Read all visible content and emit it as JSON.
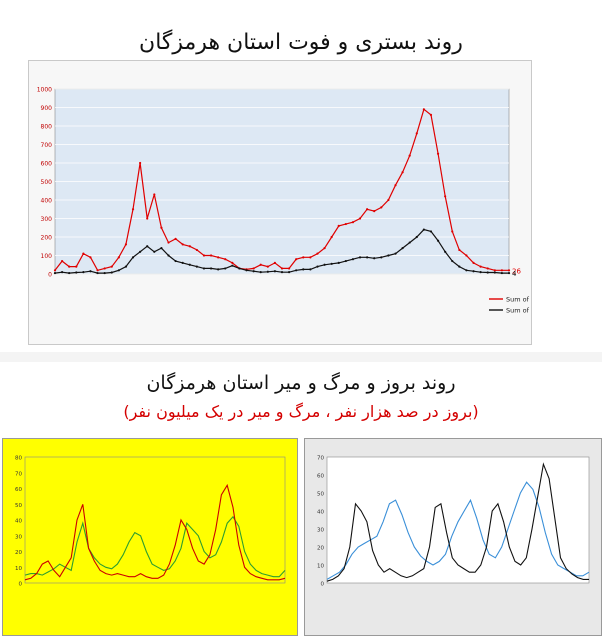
{
  "top": {
    "title": "روند بستری و فوت استان هرمزگان",
    "chart_data": {
      "type": "line",
      "y_left_ticks": [
        "0",
        "100",
        "200",
        "300",
        "400",
        "500",
        "600",
        "700",
        "800",
        "900",
        "1000"
      ],
      "ylim": [
        0,
        1000
      ],
      "series": [
        {
          "name": "Sum of بستری",
          "color": "#e00000",
          "values": [
            20,
            70,
            40,
            40,
            110,
            90,
            20,
            30,
            40,
            90,
            160,
            350,
            600,
            300,
            430,
            250,
            170,
            190,
            160,
            150,
            130,
            100,
            100,
            90,
            80,
            60,
            30,
            25,
            30,
            50,
            40,
            60,
            30,
            30,
            80,
            90,
            90,
            110,
            140,
            200,
            260,
            270,
            280,
            300,
            350,
            340,
            360,
            400,
            480,
            550,
            640,
            760,
            890,
            860,
            650,
            420,
            230,
            130,
            100,
            60,
            40,
            30,
            20,
            20,
            20
          ],
          "end_label": "26"
        },
        {
          "name": "Sum of فوت",
          "color": "#111111",
          "values": [
            5,
            10,
            5,
            8,
            10,
            15,
            5,
            5,
            8,
            20,
            40,
            90,
            120,
            150,
            120,
            140,
            100,
            70,
            60,
            50,
            40,
            30,
            30,
            25,
            30,
            45,
            30,
            20,
            15,
            10,
            12,
            15,
            10,
            10,
            20,
            25,
            25,
            40,
            50,
            55,
            60,
            70,
            80,
            90,
            90,
            85,
            90,
            100,
            110,
            140,
            170,
            200,
            240,
            230,
            180,
            120,
            70,
            40,
            20,
            15,
            10,
            8,
            8,
            5,
            5
          ],
          "end_label": "4"
        }
      ]
    }
  },
  "bottom": {
    "title": "روند بروز و مرگ و میر استان هرمزگان",
    "subtitle": "(بروز در صد هزار نفر ، مرگ و میر در یک میلیون نفر)",
    "left_chart": {
      "chart_data": {
        "type": "line",
        "y_ticks": [
          "0",
          "10",
          "20",
          "30",
          "40",
          "50",
          "60",
          "70",
          "80"
        ],
        "ylim": [
          0,
          80
        ],
        "series": [
          {
            "color": "#2e9e2e",
            "values": [
              5,
              6,
              6,
              5,
              7,
              9,
              12,
              10,
              8,
              26,
              38,
              22,
              16,
              12,
              10,
              9,
              12,
              18,
              26,
              32,
              30,
              20,
              12,
              10,
              8,
              9,
              14,
              22,
              38,
              34,
              30,
              20,
              16,
              18,
              26,
              38,
              42,
              36,
              20,
              12,
              8,
              6,
              5,
              4,
              4,
              8
            ]
          },
          {
            "color": "#cc0000",
            "values": [
              2,
              3,
              6,
              12,
              14,
              8,
              4,
              10,
              16,
              40,
              50,
              22,
              14,
              8,
              6,
              5,
              6,
              5,
              4,
              4,
              6,
              4,
              3,
              3,
              5,
              12,
              24,
              40,
              34,
              22,
              14,
              12,
              18,
              34,
              56,
              62,
              48,
              24,
              10,
              6,
              4,
              3,
              2,
              2,
              2,
              3
            ]
          }
        ]
      }
    },
    "right_chart": {
      "chart_data": {
        "type": "line",
        "y_ticks": [
          "0",
          "10",
          "20",
          "30",
          "40",
          "50",
          "60",
          "70"
        ],
        "ylim": [
          0,
          70
        ],
        "series": [
          {
            "color": "#3a8fd8",
            "values": [
              2,
              4,
              6,
              10,
              16,
              20,
              22,
              24,
              26,
              34,
              44,
              46,
              38,
              28,
              20,
              15,
              12,
              10,
              12,
              16,
              26,
              34,
              40,
              46,
              36,
              24,
              16,
              14,
              20,
              30,
              40,
              50,
              56,
              52,
              42,
              28,
              16,
              10,
              8,
              6,
              4,
              4,
              6
            ]
          },
          {
            "color": "#111111",
            "values": [
              1,
              2,
              4,
              8,
              20,
              44,
              40,
              34,
              18,
              10,
              6,
              8,
              6,
              4,
              3,
              4,
              6,
              8,
              20,
              42,
              44,
              28,
              14,
              10,
              8,
              6,
              6,
              10,
              20,
              40,
              44,
              34,
              20,
              12,
              10,
              14,
              30,
              48,
              66,
              58,
              36,
              14,
              8,
              5,
              3,
              2,
              2
            ]
          }
        ]
      }
    }
  }
}
